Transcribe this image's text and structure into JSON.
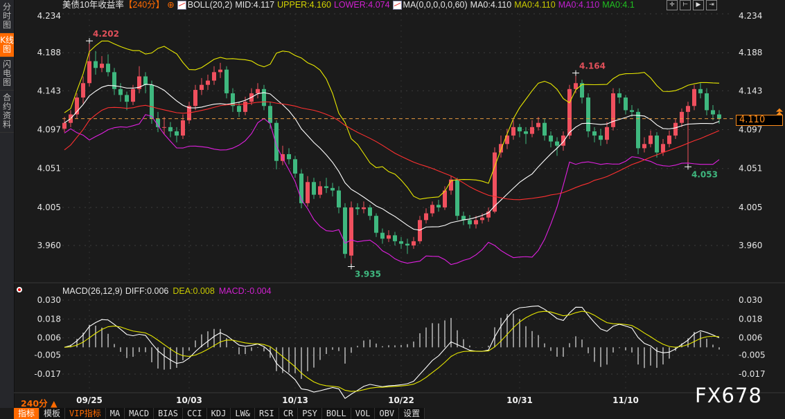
{
  "sidebar": {
    "items": [
      "分时图",
      "K线图",
      "闪电图",
      "合约资料"
    ],
    "active": 1
  },
  "legend": {
    "title": "美债10年收益率",
    "period_tag": "【240分】",
    "boll": "BOLL(20,2)",
    "mid": "MID:4.117",
    "upper": "UPPER:4.160",
    "lower": "LOWER:4.074",
    "ma": "MA(0,0,0,0,0,60)",
    "ma0_a": "MA0:4.110",
    "ma0_b": "MA0:4.110",
    "ma0_c": "MA0:4.110",
    "ma0_d": "MA0:4.1"
  },
  "macd_legend": {
    "name": "MACD(26,12,9)",
    "diff": "DIFF:0.006",
    "dea": "DEA:0.008",
    "macd": "MACD:-0.004"
  },
  "current_price": "4.110",
  "period_selector": "240分 ▲",
  "toolbar": [
    "指标",
    "模板",
    "VIP指标",
    "MA",
    "MACD",
    "BIAS",
    "CCI",
    "KDJ",
    "LW&",
    "RSI",
    "CR",
    "PSY",
    "BOLL",
    "VOL",
    "OBV",
    "设置"
  ],
  "watermark": "FX678",
  "colors": {
    "up": "#f0505e",
    "down": "#3fb87f",
    "upper": "#e8e800",
    "mid": "#ffffff",
    "lower": "#e020e0",
    "ma60": "#ff3030",
    "dea": "#e8e800",
    "diff": "#ffffff",
    "accent": "#ff6a00"
  },
  "chart_data": [
    {
      "type": "candlestick",
      "title": "美债10年收益率",
      "ylim": [
        3.93,
        4.234
      ],
      "yticks": [
        "4.234",
        "4.188",
        "4.143",
        "4.097",
        "4.051",
        "4.005",
        "3.960"
      ],
      "xtick_labels": [
        {
          "index": 4,
          "label": "09/25"
        },
        {
          "index": 20,
          "label": "10/03"
        },
        {
          "index": 37,
          "label": "10/13"
        },
        {
          "index": 54,
          "label": "10/22"
        },
        {
          "index": 73,
          "label": "10/31"
        },
        {
          "index": 90,
          "label": "11/10"
        }
      ],
      "annotations": [
        {
          "index": 4,
          "label": "4.202",
          "kind": "high"
        },
        {
          "index": 46,
          "label": "3.935",
          "kind": "low"
        },
        {
          "index": 82,
          "label": "4.164",
          "kind": "high"
        },
        {
          "index": 100,
          "label": "4.053",
          "kind": "low"
        }
      ],
      "ohlc": [
        [
          4.098,
          4.112,
          4.094,
          4.105
        ],
        [
          4.105,
          4.12,
          4.1,
          4.115
        ],
        [
          4.115,
          4.14,
          4.11,
          4.135
        ],
        [
          4.135,
          4.16,
          4.128,
          4.152
        ],
        [
          4.152,
          4.202,
          4.148,
          4.178
        ],
        [
          4.178,
          4.19,
          4.162,
          4.17
        ],
        [
          4.17,
          4.184,
          4.165,
          4.175
        ],
        [
          4.175,
          4.186,
          4.16,
          4.165
        ],
        [
          4.165,
          4.17,
          4.138,
          4.145
        ],
        [
          4.145,
          4.152,
          4.13,
          4.138
        ],
        [
          4.138,
          4.142,
          4.12,
          4.13
        ],
        [
          4.13,
          4.15,
          4.126,
          4.145
        ],
        [
          4.145,
          4.172,
          4.14,
          4.16
        ],
        [
          4.16,
          4.165,
          4.14,
          4.15
        ],
        [
          4.15,
          4.155,
          4.104,
          4.11
        ],
        [
          4.11,
          4.118,
          4.094,
          4.1
        ],
        [
          4.1,
          4.112,
          4.092,
          4.1
        ],
        [
          4.1,
          4.106,
          4.088,
          4.095
        ],
        [
          4.095,
          4.1,
          4.082,
          4.09
        ],
        [
          4.09,
          4.115,
          4.086,
          4.108
        ],
        [
          4.108,
          4.13,
          4.104,
          4.125
        ],
        [
          4.125,
          4.15,
          4.12,
          4.144
        ],
        [
          4.144,
          4.158,
          4.138,
          4.15
        ],
        [
          4.15,
          4.162,
          4.144,
          4.155
        ],
        [
          4.155,
          4.172,
          4.15,
          4.165
        ],
        [
          4.165,
          4.176,
          4.158,
          4.168
        ],
        [
          4.168,
          4.172,
          4.134,
          4.14
        ],
        [
          4.14,
          4.146,
          4.118,
          4.125
        ],
        [
          4.125,
          4.13,
          4.112,
          4.118
        ],
        [
          4.118,
          4.136,
          4.114,
          4.13
        ],
        [
          4.13,
          4.146,
          4.126,
          4.14
        ],
        [
          4.14,
          4.152,
          4.134,
          4.145
        ],
        [
          4.145,
          4.15,
          4.12,
          4.125
        ],
        [
          4.125,
          4.13,
          4.098,
          4.105
        ],
        [
          4.105,
          4.108,
          4.05,
          4.06
        ],
        [
          4.06,
          4.078,
          4.055,
          4.068
        ],
        [
          4.068,
          4.075,
          4.056,
          4.062
        ],
        [
          4.062,
          4.066,
          4.04,
          4.045
        ],
        [
          4.045,
          4.05,
          4.004,
          4.01
        ],
        [
          4.01,
          4.042,
          4.006,
          4.035
        ],
        [
          4.035,
          4.04,
          4.015,
          4.02
        ],
        [
          4.02,
          4.036,
          4.016,
          4.03
        ],
        [
          4.03,
          4.04,
          4.022,
          4.028
        ],
        [
          4.028,
          4.034,
          4.018,
          4.025
        ],
        [
          4.025,
          4.03,
          3.998,
          4.005
        ],
        [
          4.005,
          4.01,
          3.945,
          3.95
        ],
        [
          3.948,
          4.012,
          3.935,
          4.005
        ],
        [
          4.005,
          4.01,
          3.996,
          4.003
        ],
        [
          4.003,
          4.012,
          3.998,
          4.005
        ],
        [
          4.005,
          4.008,
          3.99,
          3.995
        ],
        [
          3.995,
          3.998,
          3.97,
          3.975
        ],
        [
          3.975,
          3.98,
          3.962,
          3.968
        ],
        [
          3.968,
          3.978,
          3.964,
          3.972
        ],
        [
          3.972,
          3.976,
          3.96,
          3.965
        ],
        [
          3.965,
          3.97,
          3.956,
          3.962
        ],
        [
          3.962,
          3.968,
          3.95,
          3.96
        ],
        [
          3.96,
          3.97,
          3.956,
          3.965
        ],
        [
          3.965,
          3.995,
          3.962,
          3.99
        ],
        [
          3.99,
          4.004,
          3.986,
          3.998
        ],
        [
          3.998,
          4.012,
          3.994,
          4.008
        ],
        [
          4.008,
          4.014,
          4.0,
          4.005
        ],
        [
          4.005,
          4.03,
          4.002,
          4.025
        ],
        [
          4.025,
          4.042,
          4.02,
          4.038
        ],
        [
          4.038,
          4.04,
          3.99,
          3.995
        ],
        [
          3.995,
          4.0,
          3.984,
          3.99
        ],
        [
          3.99,
          3.996,
          3.98,
          3.985
        ],
        [
          3.985,
          3.995,
          3.98,
          3.99
        ],
        [
          3.99,
          3.998,
          3.986,
          3.993
        ],
        [
          3.993,
          4.005,
          3.988,
          4.0
        ],
        [
          4.0,
          4.076,
          3.998,
          4.07
        ],
        [
          4.07,
          4.09,
          4.064,
          4.08
        ],
        [
          4.08,
          4.098,
          4.074,
          4.09
        ],
        [
          4.09,
          4.108,
          4.085,
          4.1
        ],
        [
          4.1,
          4.104,
          4.088,
          4.095
        ],
        [
          4.095,
          4.1,
          4.08,
          4.092
        ],
        [
          4.092,
          4.108,
          4.088,
          4.1
        ],
        [
          4.1,
          4.112,
          4.096,
          4.105
        ],
        [
          4.105,
          4.11,
          4.084,
          4.09
        ],
        [
          4.09,
          4.095,
          4.076,
          4.083
        ],
        [
          4.083,
          4.088,
          4.066,
          4.078
        ],
        [
          4.078,
          4.095,
          4.072,
          4.09
        ],
        [
          4.09,
          4.15,
          4.086,
          4.145
        ],
        [
          4.145,
          4.164,
          4.14,
          4.152
        ],
        [
          4.152,
          4.156,
          4.128,
          4.135
        ],
        [
          4.135,
          4.14,
          4.088,
          4.095
        ],
        [
          4.095,
          4.1,
          4.082,
          4.09
        ],
        [
          4.09,
          4.098,
          4.078,
          4.085
        ],
        [
          4.085,
          4.106,
          4.08,
          4.1
        ],
        [
          4.1,
          4.146,
          4.096,
          4.14
        ],
        [
          4.14,
          4.146,
          4.128,
          4.135
        ],
        [
          4.135,
          4.138,
          4.115,
          4.12
        ],
        [
          4.12,
          4.126,
          4.112,
          4.118
        ],
        [
          4.118,
          4.122,
          4.068,
          4.075
        ],
        [
          4.075,
          4.088,
          4.07,
          4.08
        ],
        [
          4.08,
          4.096,
          4.076,
          4.09
        ],
        [
          4.09,
          4.094,
          4.064,
          4.07
        ],
        [
          4.07,
          4.086,
          4.066,
          4.08
        ],
        [
          4.08,
          4.096,
          4.076,
          4.09
        ],
        [
          4.09,
          4.11,
          4.086,
          4.105
        ],
        [
          4.105,
          4.122,
          4.1,
          4.118
        ],
        [
          4.118,
          4.13,
          4.053,
          4.125
        ],
        [
          4.125,
          4.15,
          4.12,
          4.145
        ],
        [
          4.145,
          4.152,
          4.134,
          4.14
        ],
        [
          4.14,
          4.146,
          4.114,
          4.12
        ],
        [
          4.12,
          4.126,
          4.108,
          4.115
        ],
        [
          4.115,
          4.12,
          4.104,
          4.11
        ]
      ],
      "overlays": [
        "BOLL(20,2)",
        "MA60"
      ]
    },
    {
      "type": "macd",
      "ylim": [
        -0.022,
        0.032
      ],
      "yticks": [
        "0.030",
        "0.018",
        "0.006",
        "-0.005",
        "-0.017"
      ],
      "series": [
        "DIFF",
        "DEA",
        "MACD"
      ]
    }
  ]
}
